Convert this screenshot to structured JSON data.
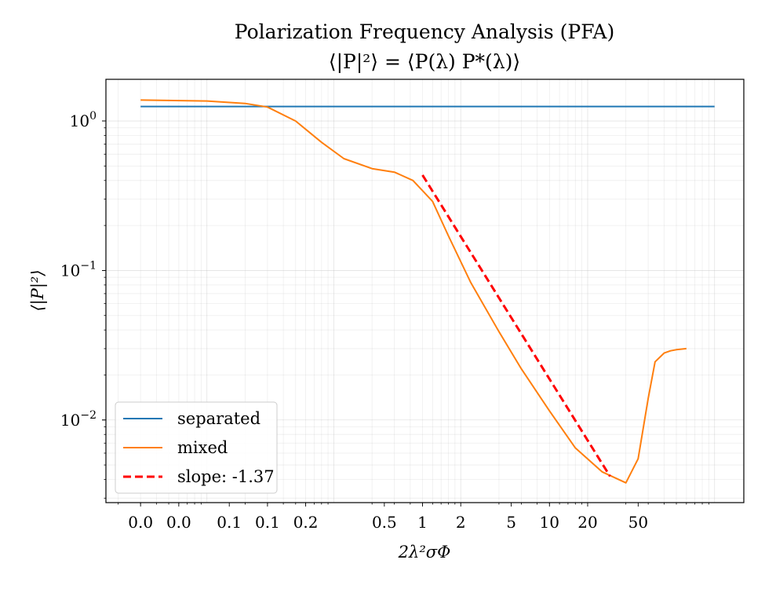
{
  "chart_data": {
    "type": "line",
    "title": "Polarization Frequency Analysis (PFA)",
    "subtitle": "⟨|P|²⟩ = ⟨P(λ) P*(λ)⟩",
    "xlabel": "2λ²σΦ",
    "ylabel": "⟨|P|²⟩",
    "xscale": "log",
    "yscale": "log",
    "xlim": [
      0.0016,
      170
    ],
    "ylim": [
      0.0028,
      1.9
    ],
    "grid": true,
    "legend_position": "lower-left",
    "x_ticks": [
      {
        "value": 0.003,
        "label": "0.0"
      },
      {
        "value": 0.006,
        "label": "0.0"
      },
      {
        "value": 0.015,
        "label": "0.1"
      },
      {
        "value": 0.03,
        "label": "0.1"
      },
      {
        "value": 0.06,
        "label": "0.2"
      },
      {
        "value": 0.25,
        "label": "0.5"
      },
      {
        "value": 0.5,
        "label": "1"
      },
      {
        "value": 1,
        "label": "2"
      },
      {
        "value": 2.5,
        "label": "5"
      },
      {
        "value": 5,
        "label": "10"
      },
      {
        "value": 10,
        "label": "20"
      },
      {
        "value": 25,
        "label": "50"
      }
    ],
    "y_ticks": [
      {
        "value": 1,
        "base": "10",
        "exp": "0"
      },
      {
        "value": 0.1,
        "base": "10",
        "exp": "−1"
      },
      {
        "value": 0.01,
        "base": "10",
        "exp": "−2"
      }
    ],
    "series": [
      {
        "name": "separated",
        "color": "#1f77b4",
        "style": "solid",
        "x": [
          0.003,
          100
        ],
        "y": [
          1.25,
          1.25
        ]
      },
      {
        "name": "mixed",
        "color": "#ff7f0e",
        "style": "solid",
        "x": [
          0.003,
          0.01,
          0.02,
          0.03,
          0.05,
          0.08,
          0.12,
          0.2,
          0.3,
          0.42,
          0.6,
          0.8,
          1.2,
          2.0,
          3.0,
          5.0,
          8.0,
          13,
          20,
          25,
          30,
          34,
          40,
          45,
          50,
          60
        ],
        "y": [
          1.38,
          1.36,
          1.31,
          1.24,
          1.0,
          0.72,
          0.56,
          0.48,
          0.455,
          0.4,
          0.29,
          0.17,
          0.083,
          0.039,
          0.022,
          0.0115,
          0.0065,
          0.0045,
          0.0038,
          0.0055,
          0.014,
          0.0245,
          0.028,
          0.029,
          0.0295,
          0.03
        ]
      },
      {
        "name": "slope: -1.37",
        "color": "#ff0000",
        "style": "dashed",
        "x": [
          0.5,
          15
        ],
        "y": [
          0.435,
          0.0042
        ]
      }
    ]
  }
}
